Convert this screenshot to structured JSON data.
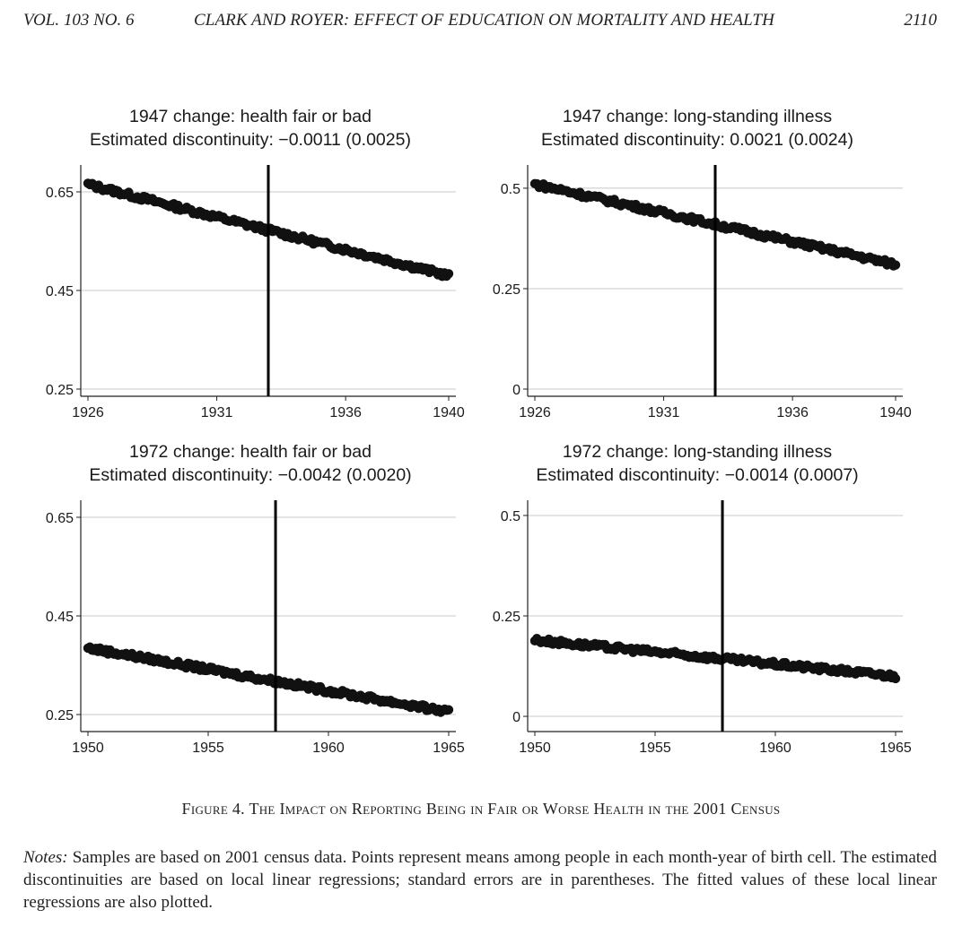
{
  "running_head": {
    "volume": "VOL. 103 NO. 6",
    "title": "CLARK AND ROYER: EFFECT OF EDUCATION ON MORTALITY AND HEALTH",
    "page": "2110"
  },
  "chart_data": [
    {
      "type": "scatter",
      "title": "1947 change: health fair or bad",
      "subtitle": "Estimated discontinuity: −0.0011 (0.0025)",
      "xlim": [
        1926,
        1940
      ],
      "xticks": [
        1926,
        1931,
        1936,
        1940
      ],
      "ylim": [
        0.25,
        0.69
      ],
      "yticks": [
        0.25,
        0.45,
        0.65
      ],
      "ytick_labels": [
        "0.25",
        "0.45",
        "0.65"
      ],
      "cutoff": 1933.0,
      "series": [
        {
          "x_start": 1926,
          "x_end": 1940,
          "y_start": 0.665,
          "y_end": 0.48
        }
      ]
    },
    {
      "type": "scatter",
      "title": "1947 change: long-standing illness",
      "subtitle": "Estimated discontinuity: 0.0021 (0.0024)",
      "xlim": [
        1926,
        1940
      ],
      "xticks": [
        1926,
        1931,
        1936,
        1940
      ],
      "ylim": [
        0,
        0.54
      ],
      "yticks": [
        0,
        0.25,
        0.5
      ],
      "ytick_labels": [
        "0",
        "0.25",
        "0.5"
      ],
      "cutoff": 1933.0,
      "series": [
        {
          "x_start": 1926,
          "x_end": 1940,
          "y_start": 0.51,
          "y_end": 0.31
        }
      ]
    },
    {
      "type": "scatter",
      "title": "1972 change: health fair or bad",
      "subtitle": "Estimated discontinuity: −0.0042 (0.0020)",
      "xlim": [
        1950,
        1965
      ],
      "xticks": [
        1950,
        1955,
        1960,
        1965
      ],
      "ylim": [
        0.23,
        0.67
      ],
      "yticks": [
        0.25,
        0.45,
        0.65
      ],
      "ytick_labels": [
        "0.25",
        "0.45",
        "0.65"
      ],
      "cutoff": 1957.8,
      "series": [
        {
          "x_start": 1950,
          "x_end": 1965,
          "y_start": 0.385,
          "y_end": 0.255
        }
      ]
    },
    {
      "type": "scatter",
      "title": "1972 change: long-standing illness",
      "subtitle": "Estimated discontinuity: −0.0014 (0.0007)",
      "xlim": [
        1950,
        1965
      ],
      "xticks": [
        1950,
        1955,
        1960,
        1965
      ],
      "ylim": [
        -0.02,
        0.52
      ],
      "yticks": [
        0,
        0.25,
        0.5
      ],
      "ytick_labels": [
        "0",
        "0.25",
        "0.5"
      ],
      "cutoff": 1957.8,
      "series": [
        {
          "x_start": 1950,
          "x_end": 1965,
          "y_start": 0.19,
          "y_end": 0.1
        }
      ]
    }
  ],
  "figure": {
    "caption": "Figure 4. The Impact on Reporting Being in Fair or Worse Health in the 2001 Census"
  },
  "notes": {
    "label": "Notes:",
    "text": " Samples are based on 2001 census data. Points represent means among people in each month-year of birth cell. The estimated discontinuities are based on local linear regressions; standard errors are in parentheses. The fitted values of these local linear regressions are also plotted."
  }
}
